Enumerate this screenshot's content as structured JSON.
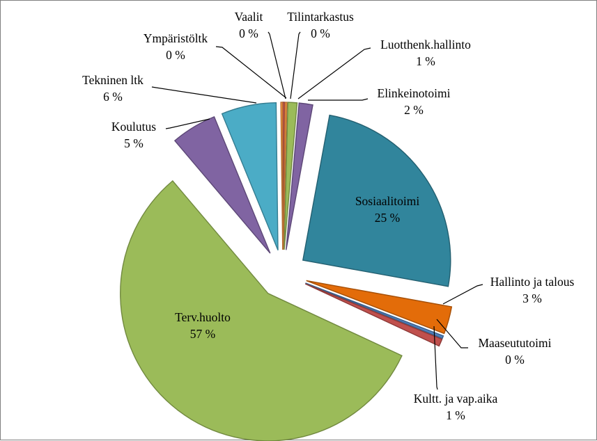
{
  "chart_data": {
    "type": "pie",
    "exploded": true,
    "title": "",
    "legend": "none",
    "slices": [
      {
        "name": "Vaalit",
        "value": 0.2,
        "pct_label": "0 %",
        "color": "#c0504d"
      },
      {
        "name": "Tilintarkastus",
        "value": 0.2,
        "pct_label": "0 %",
        "color": "#f79646"
      },
      {
        "name": "Luotthenk.hallinto",
        "value": 1,
        "pct_label": "1 %",
        "color": "#9bbb59"
      },
      {
        "name": "Elinkeinotoimi",
        "value": 1.5,
        "pct_label": "2 %",
        "color": "#8064a2"
      },
      {
        "name": "Sosiaalitoimi",
        "value": 25,
        "pct_label": "25 %",
        "color": "#31859c"
      },
      {
        "name": "Hallinto ja talous",
        "value": 3,
        "pct_label": "3 %",
        "color": "#e36c09"
      },
      {
        "name": "Maaseututoimi",
        "value": 0.3,
        "pct_label": "0 %",
        "color": "#4f81bd"
      },
      {
        "name": "Kultt. ja vap.aika",
        "value": 0.8,
        "pct_label": "1 %",
        "color": "#c0504d"
      },
      {
        "name": "Terv.huolto",
        "value": 57,
        "pct_label": "57 %",
        "color": "#9bbb59"
      },
      {
        "name": "Koulutus",
        "value": 5,
        "pct_label": "5 %",
        "color": "#8064a2"
      },
      {
        "name": "Tekninen ltk",
        "value": 6,
        "pct_label": "6 %",
        "color": "#4bacc6"
      },
      {
        "name": "Ympäristöltk",
        "value": 0.2,
        "pct_label": "0 %",
        "color": "#f79646"
      }
    ]
  }
}
